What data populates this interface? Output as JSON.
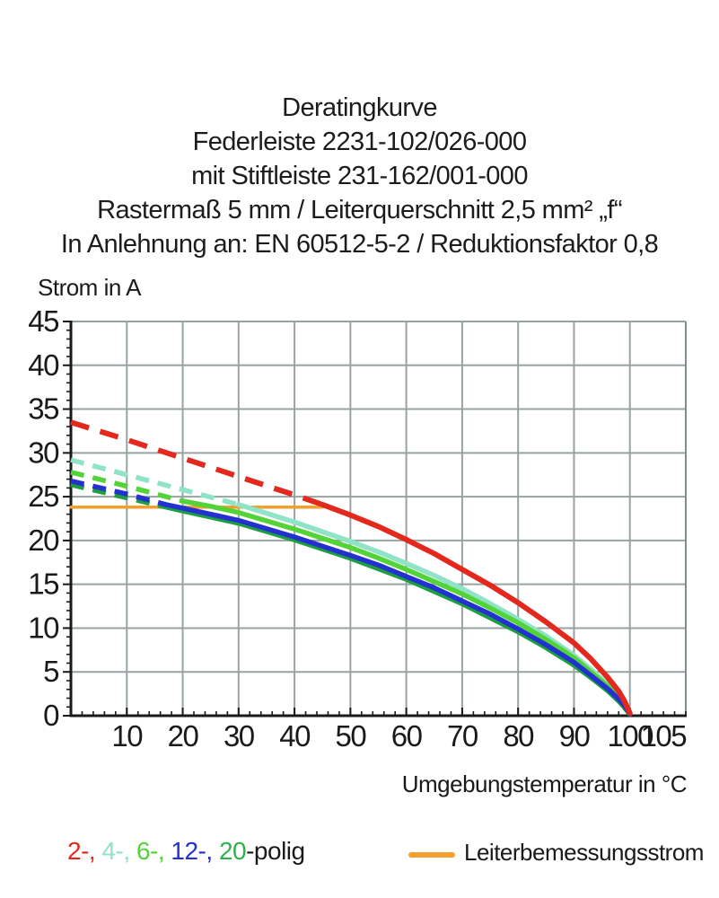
{
  "title_block": {
    "lines": [
      "Deratingkurve",
      "Federleiste 2231-102/026-000",
      "mit Stiftleiste 231-162/001-000",
      "Rastermaß 5 mm / Leiterquerschnitt 2,5 mm² „f“",
      "In Anlehnung an: EN 60512-5-2 / Reduktionsfaktor 0,8"
    ]
  },
  "chart_data": {
    "type": "line",
    "title": "Deratingkurve",
    "ylabel": "Strom in A",
    "xlabel": "Umgebungstemperatur in °C",
    "xlim": [
      0,
      110
    ],
    "ylim": [
      0,
      45
    ],
    "grid": true,
    "grid_color": "#97a3a3",
    "x_tick_labels": [
      10,
      20,
      30,
      40,
      50,
      60,
      70,
      80,
      90,
      100,
      105
    ],
    "x_gridlines": [
      10,
      20,
      30,
      40,
      50,
      60,
      70,
      80,
      90,
      100
    ],
    "x_minor_step": 2,
    "y_tick_labels": [
      0,
      5,
      10,
      15,
      20,
      25,
      30,
      35,
      40,
      45
    ],
    "y_gridlines": [
      5,
      10,
      15,
      20,
      25,
      30,
      35,
      40,
      45
    ],
    "y_minor_step": 1,
    "legend_position": "bottom",
    "series": [
      {
        "name": "Leiterbemessungsstrom",
        "color": "#f59f2e",
        "z": 0,
        "width": 3.5,
        "solid_from_x": 0,
        "points": [
          [
            0,
            23.8
          ],
          [
            45,
            23.8
          ]
        ]
      },
      {
        "name": "20-polig",
        "color": "#1d9e40",
        "z": 1,
        "width": 6,
        "solid_from_x": 16,
        "dash": "15 10",
        "points": [
          [
            0,
            26.4
          ],
          [
            10,
            24.9
          ],
          [
            16,
            24.0
          ],
          [
            20,
            23.4
          ],
          [
            30,
            22.0
          ],
          [
            40,
            20.1
          ],
          [
            50,
            18.0
          ],
          [
            60,
            15.6
          ],
          [
            70,
            12.8
          ],
          [
            80,
            9.6
          ],
          [
            85,
            7.8
          ],
          [
            90,
            5.8
          ],
          [
            93,
            4.4
          ],
          [
            96,
            2.9
          ],
          [
            98,
            1.7
          ],
          [
            99,
            1.0
          ],
          [
            100,
            0.2
          ]
        ]
      },
      {
        "name": "4-polig",
        "color": "#8fe3c6",
        "z": 2,
        "width": 5.5,
        "solid_from_x": 30,
        "dash": "15 10",
        "points": [
          [
            0,
            29.2
          ],
          [
            10,
            27.5
          ],
          [
            20,
            25.8
          ],
          [
            30,
            24.1
          ],
          [
            35,
            23.1
          ],
          [
            40,
            22.1
          ],
          [
            45,
            21.0
          ],
          [
            50,
            19.9
          ],
          [
            55,
            18.7
          ],
          [
            60,
            17.4
          ],
          [
            65,
            16.0
          ],
          [
            70,
            14.5
          ],
          [
            75,
            12.8
          ],
          [
            80,
            11.0
          ],
          [
            85,
            9.1
          ],
          [
            90,
            6.9
          ],
          [
            93,
            5.3
          ],
          [
            96,
            3.6
          ],
          [
            98,
            2.3
          ],
          [
            99,
            1.4
          ],
          [
            100,
            0.3
          ]
        ]
      },
      {
        "name": "6-polig",
        "color": "#54d338",
        "z": 3,
        "width": 5.5,
        "solid_from_x": 20,
        "dash": "15 10",
        "points": [
          [
            0,
            27.8
          ],
          [
            10,
            26.2
          ],
          [
            20,
            24.5
          ],
          [
            25,
            23.9
          ],
          [
            30,
            23.2
          ],
          [
            40,
            21.3
          ],
          [
            50,
            19.2
          ],
          [
            55,
            18.0
          ],
          [
            60,
            16.7
          ],
          [
            65,
            15.3
          ],
          [
            70,
            13.9
          ],
          [
            75,
            12.3
          ],
          [
            80,
            10.6
          ],
          [
            85,
            8.7
          ],
          [
            90,
            6.6
          ],
          [
            93,
            5.0
          ],
          [
            96,
            3.4
          ],
          [
            98,
            2.1
          ],
          [
            99,
            1.3
          ],
          [
            100,
            0.3
          ]
        ]
      },
      {
        "name": "12-polig",
        "color": "#2431d1",
        "z": 4,
        "width": 5.5,
        "solid_from_x": 17,
        "dash": "15 10",
        "points": [
          [
            0,
            26.8
          ],
          [
            10,
            25.3
          ],
          [
            17,
            24.1
          ],
          [
            20,
            23.7
          ],
          [
            30,
            22.3
          ],
          [
            40,
            20.4
          ],
          [
            50,
            18.3
          ],
          [
            55,
            17.2
          ],
          [
            60,
            15.9
          ],
          [
            65,
            14.6
          ],
          [
            70,
            13.1
          ],
          [
            75,
            11.6
          ],
          [
            80,
            9.9
          ],
          [
            85,
            8.1
          ],
          [
            90,
            6.1
          ],
          [
            93,
            4.6
          ],
          [
            96,
            3.1
          ],
          [
            98,
            1.9
          ],
          [
            99,
            1.2
          ],
          [
            100,
            0.2
          ]
        ]
      },
      {
        "name": "2-polig",
        "color": "#e3291d",
        "z": 5,
        "width": 6,
        "solid_from_x": 45,
        "dash": "21 13",
        "points": [
          [
            0,
            33.5
          ],
          [
            10,
            31.5
          ],
          [
            20,
            29.4
          ],
          [
            30,
            27.3
          ],
          [
            40,
            25.2
          ],
          [
            45,
            24.1
          ],
          [
            50,
            22.9
          ],
          [
            55,
            21.6
          ],
          [
            60,
            20.1
          ],
          [
            65,
            18.5
          ],
          [
            70,
            16.7
          ],
          [
            75,
            14.9
          ],
          [
            80,
            12.9
          ],
          [
            85,
            10.7
          ],
          [
            90,
            8.3
          ],
          [
            93,
            6.5
          ],
          [
            96,
            4.4
          ],
          [
            98,
            2.8
          ],
          [
            99,
            1.7
          ],
          [
            100,
            0.3
          ]
        ]
      }
    ]
  },
  "legend": {
    "pole_items": [
      {
        "label": "2-,",
        "color": "#e3291d"
      },
      {
        "label": "4-,",
        "color": "#8fe3c6"
      },
      {
        "label": "6-,",
        "color": "#54d338"
      },
      {
        "label": "12-,",
        "color": "#2431d1"
      },
      {
        "label": "20",
        "color": "#2eb04c"
      }
    ],
    "suffix": "-polig",
    "rated_label": "Leiterbemessungsstrom",
    "rated_color": "#f59f2e"
  },
  "axis_titles": {
    "y": "Strom in A",
    "x": "Umgebungstemperatur in °C"
  }
}
